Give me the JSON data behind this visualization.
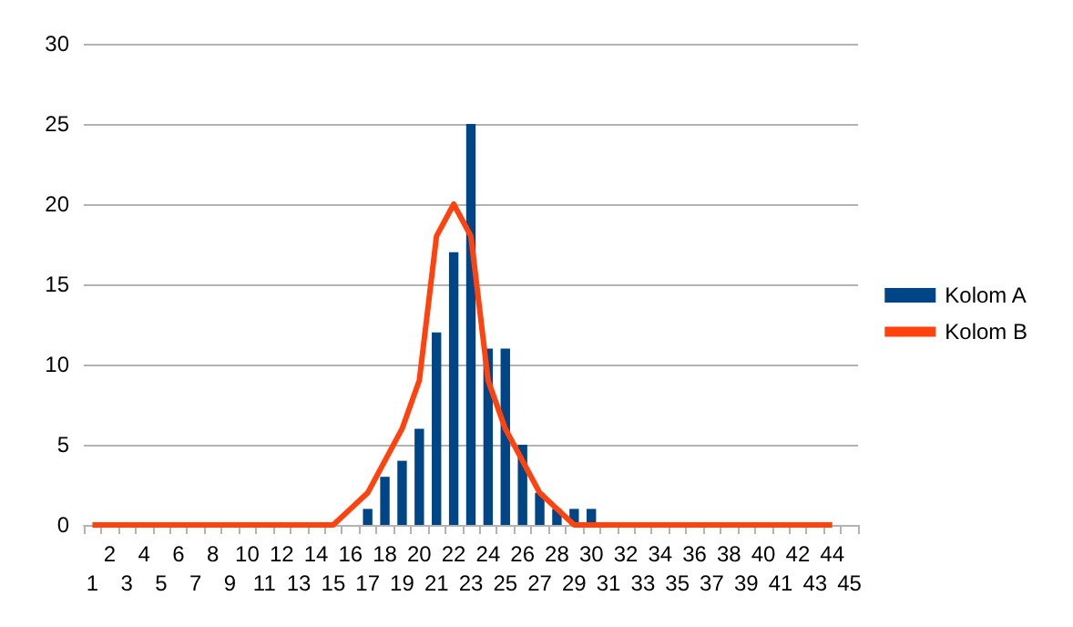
{
  "chart_data": {
    "type": "bar",
    "categories": [
      "1",
      "2",
      "3",
      "4",
      "5",
      "6",
      "7",
      "8",
      "9",
      "10",
      "11",
      "12",
      "13",
      "14",
      "15",
      "16",
      "17",
      "18",
      "19",
      "20",
      "21",
      "22",
      "23",
      "24",
      "25",
      "26",
      "27",
      "28",
      "29",
      "30",
      "31",
      "32",
      "33",
      "34",
      "35",
      "36",
      "37",
      "38",
      "39",
      "40",
      "41",
      "42",
      "43",
      "44",
      "45"
    ],
    "series": [
      {
        "name": "Kolom A",
        "color": "#004586",
        "values": [
          null,
          null,
          null,
          null,
          null,
          null,
          null,
          null,
          null,
          null,
          null,
          null,
          null,
          null,
          null,
          null,
          1,
          3,
          4,
          6,
          12,
          17,
          25,
          11,
          11,
          5,
          2,
          1,
          1,
          1,
          null,
          null,
          null,
          null,
          null,
          null,
          null,
          null,
          null,
          null,
          null,
          null,
          null,
          null,
          null
        ]
      },
      {
        "name": "Kolom B",
        "type": "line",
        "color": "#ff420e",
        "values": [
          0,
          0,
          0,
          0,
          0,
          0,
          0,
          0,
          0,
          0,
          0,
          0,
          0,
          0,
          0,
          1,
          2,
          4,
          6,
          9,
          18,
          20,
          18,
          9,
          6,
          4,
          2,
          1,
          0,
          0,
          0,
          0,
          0,
          0,
          0,
          0,
          0,
          0,
          0,
          0,
          0,
          0,
          0,
          0,
          null
        ]
      }
    ],
    "ylim": [
      0,
      30
    ],
    "yticks": [
      0,
      5,
      10,
      15,
      20,
      25,
      30
    ],
    "grid": "y",
    "legend": "right",
    "marker": "none"
  }
}
